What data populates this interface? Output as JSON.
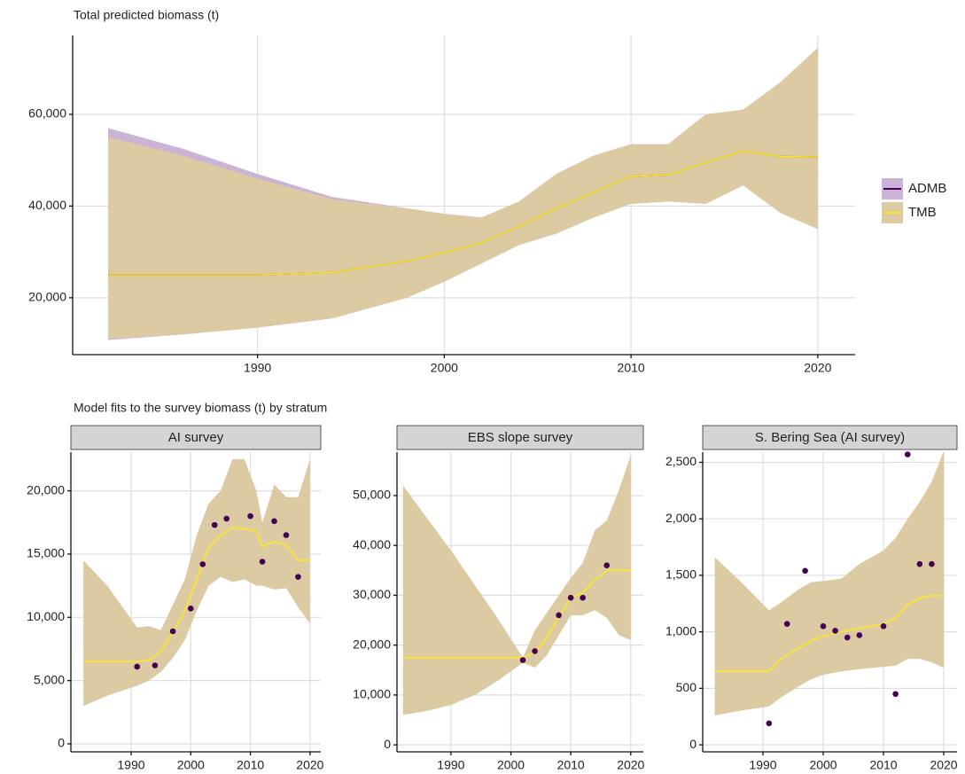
{
  "chart_data": [
    {
      "type": "line",
      "title": "Total predicted biomass (t)",
      "legend": "right",
      "grid": true,
      "x": [
        1982,
        1986,
        1990,
        1994,
        1998,
        2000,
        2002,
        2004,
        2006,
        2008,
        2010,
        2012,
        2014,
        2016,
        2018,
        2020
      ],
      "series": [
        {
          "name": "ADMB",
          "color": "#440154",
          "band_color": "#cbb3d6",
          "values": [
            25000,
            25000,
            25000,
            25500,
            28000,
            29800,
            32000,
            35500,
            39500,
            43000,
            46500,
            46800,
            49500,
            52000,
            50800,
            50700
          ],
          "upper": [
            57000,
            52500,
            47000,
            42000,
            39500,
            38300,
            37500,
            41000,
            47000,
            51000,
            53500,
            53500,
            60000,
            61000,
            67000,
            74500
          ],
          "lower": [
            10800,
            12000,
            13500,
            15500,
            20000,
            23500,
            27500,
            31500,
            34000,
            37500,
            40500,
            41000,
            40500,
            44500,
            38500,
            35000
          ]
        },
        {
          "name": "TMB",
          "color": "#fde725",
          "band_color": "#dccaa2",
          "values": [
            25000,
            25000,
            25000,
            25500,
            28000,
            29800,
            32000,
            35500,
            39500,
            43000,
            46500,
            46800,
            49500,
            52000,
            50800,
            50700
          ],
          "upper": [
            55000,
            51000,
            46000,
            41500,
            39500,
            38300,
            37500,
            41000,
            47000,
            51000,
            53500,
            53500,
            60000,
            61000,
            67000,
            74500
          ],
          "lower": [
            11000,
            12000,
            13500,
            15500,
            20000,
            23500,
            27500,
            31500,
            34000,
            37500,
            40500,
            41000,
            40500,
            44500,
            38500,
            35000
          ]
        }
      ],
      "xlim": [
        1980.1,
        2022.0
      ],
      "xticks": [
        1990,
        2000,
        2010,
        2020
      ],
      "ylim": [
        7600,
        77200
      ],
      "yticks": [
        {
          "value": 20000,
          "label": "20,000"
        },
        {
          "value": 40000,
          "label": "40,000"
        },
        {
          "value": 60000,
          "label": "60,000"
        }
      ]
    },
    {
      "type": "line",
      "title": "Model fits to the survey biomass (t) by stratum",
      "strip": "AI survey",
      "grid": true,
      "x": [
        1982,
        1986,
        1991,
        1993,
        1995,
        1997,
        1999,
        2001,
        2003,
        2005,
        2007,
        2009,
        2011,
        2012,
        2014,
        2016,
        2018,
        2020
      ],
      "series": [
        {
          "color": "#fde725",
          "band_color": "#dccaa2",
          "values": [
            6500,
            6500,
            6500,
            6600,
            7300,
            8800,
            10500,
            13000,
            15500,
            16500,
            17100,
            17000,
            16800,
            15600,
            16000,
            15700,
            14500,
            14500
          ],
          "upper": [
            14500,
            12500,
            9200,
            9300,
            9000,
            11000,
            13000,
            16500,
            19000,
            20000,
            22500,
            22500,
            20000,
            17500,
            20500,
            19500,
            19500,
            22500
          ],
          "lower": [
            3000,
            3800,
            4600,
            5000,
            5700,
            6800,
            8200,
            10500,
            12500,
            13200,
            12800,
            13000,
            12500,
            12500,
            12200,
            12300,
            10800,
            9500
          ]
        }
      ],
      "points": {
        "color": "#440154",
        "x": [
          1991,
          1994,
          1997,
          2000,
          2002,
          2004,
          2006,
          2010,
          2012,
          2014,
          2016,
          2018
        ],
        "values": [
          6100,
          6200,
          8900,
          10700,
          14200,
          17300,
          17800,
          18000,
          14400,
          17600,
          16500,
          13200
        ]
      },
      "xlim": [
        1979.9,
        2021.8
      ],
      "xticks": [
        1990,
        2000,
        2010,
        2020
      ],
      "ylim": [
        -630,
        23055
      ],
      "yticks": [
        0,
        {
          "value": 5000,
          "label": "5,000"
        },
        {
          "value": 10000,
          "label": "10,000"
        },
        {
          "value": 15000,
          "label": "15,000"
        },
        {
          "value": 20000,
          "label": "20,000"
        }
      ]
    },
    {
      "type": "line",
      "strip": "EBS slope survey",
      "grid": true,
      "x": [
        1982,
        1986,
        1990,
        1994,
        1998,
        2002,
        2004,
        2006,
        2008,
        2010,
        2012,
        2014,
        2016,
        2018,
        2020
      ],
      "series": [
        {
          "color": "#fde725",
          "band_color": "#dccaa2",
          "values": [
            17500,
            17500,
            17500,
            17500,
            17500,
            17500,
            18500,
            21500,
            25500,
            29500,
            30500,
            33000,
            35000,
            35000,
            35000
          ],
          "upper": [
            52000,
            45500,
            39000,
            32000,
            25000,
            17500,
            23000,
            26500,
            30000,
            33500,
            36500,
            43000,
            45000,
            51000,
            58000
          ],
          "lower": [
            6000,
            6800,
            8000,
            10000,
            13000,
            16500,
            15500,
            18000,
            22000,
            26000,
            26000,
            27000,
            25500,
            22000,
            21000
          ]
        }
      ],
      "points": {
        "color": "#440154",
        "x": [
          2002,
          2004,
          2008,
          2010,
          2012,
          2016
        ],
        "values": [
          17000,
          18800,
          26000,
          29500,
          29500,
          36000
        ]
      },
      "xlim": [
        1981.0,
        2022.1
      ],
      "xticks": [
        1990,
        2000,
        2010,
        2020
      ],
      "ylim": [
        -1400,
        58700
      ],
      "yticks": [
        0,
        {
          "value": 10000,
          "label": "10,000"
        },
        {
          "value": 20000,
          "label": "20,000"
        },
        {
          "value": 30000,
          "label": "30,000"
        },
        {
          "value": 40000,
          "label": "40,000"
        },
        {
          "value": 50000,
          "label": "50,000"
        }
      ]
    },
    {
      "type": "line",
      "strip": "S. Bering Sea (AI survey)",
      "grid": true,
      "x": [
        1982,
        1986,
        1991,
        1993,
        1996,
        1998,
        2000,
        2003,
        2006,
        2010,
        2012,
        2014,
        2016,
        2018,
        2020
      ],
      "series": [
        {
          "color": "#fde725",
          "band_color": "#dccaa2",
          "values": [
            650,
            650,
            650,
            760,
            860,
            920,
            960,
            1000,
            1030,
            1070,
            1120,
            1240,
            1300,
            1320,
            1320
          ],
          "upper": [
            1660,
            1460,
            1190,
            1260,
            1380,
            1440,
            1450,
            1470,
            1600,
            1720,
            1830,
            2000,
            2150,
            2330,
            2600
          ],
          "lower": [
            260,
            300,
            340,
            420,
            520,
            580,
            620,
            650,
            670,
            690,
            700,
            760,
            760,
            730,
            680
          ]
        }
      ],
      "points": {
        "color": "#440154",
        "x": [
          1991,
          1994,
          1997,
          2000,
          2002,
          2004,
          2006,
          2010,
          2012,
          2014,
          2016,
          2018
        ],
        "values": [
          190,
          1070,
          1540,
          1050,
          1010,
          950,
          970,
          1050,
          450,
          2570,
          1600,
          1600
        ]
      },
      "xlim": [
        1980.0,
        2022.2
      ],
      "xticks": [
        1990,
        2000,
        2010,
        2020
      ],
      "ylim": [
        -62,
        2590
      ],
      "yticks": [
        0,
        500,
        {
          "value": 1000,
          "label": "1,000"
        },
        {
          "value": 1500,
          "label": "1,500"
        },
        {
          "value": 2000,
          "label": "2,000"
        },
        {
          "value": 2500,
          "label": "2,500"
        }
      ]
    }
  ]
}
